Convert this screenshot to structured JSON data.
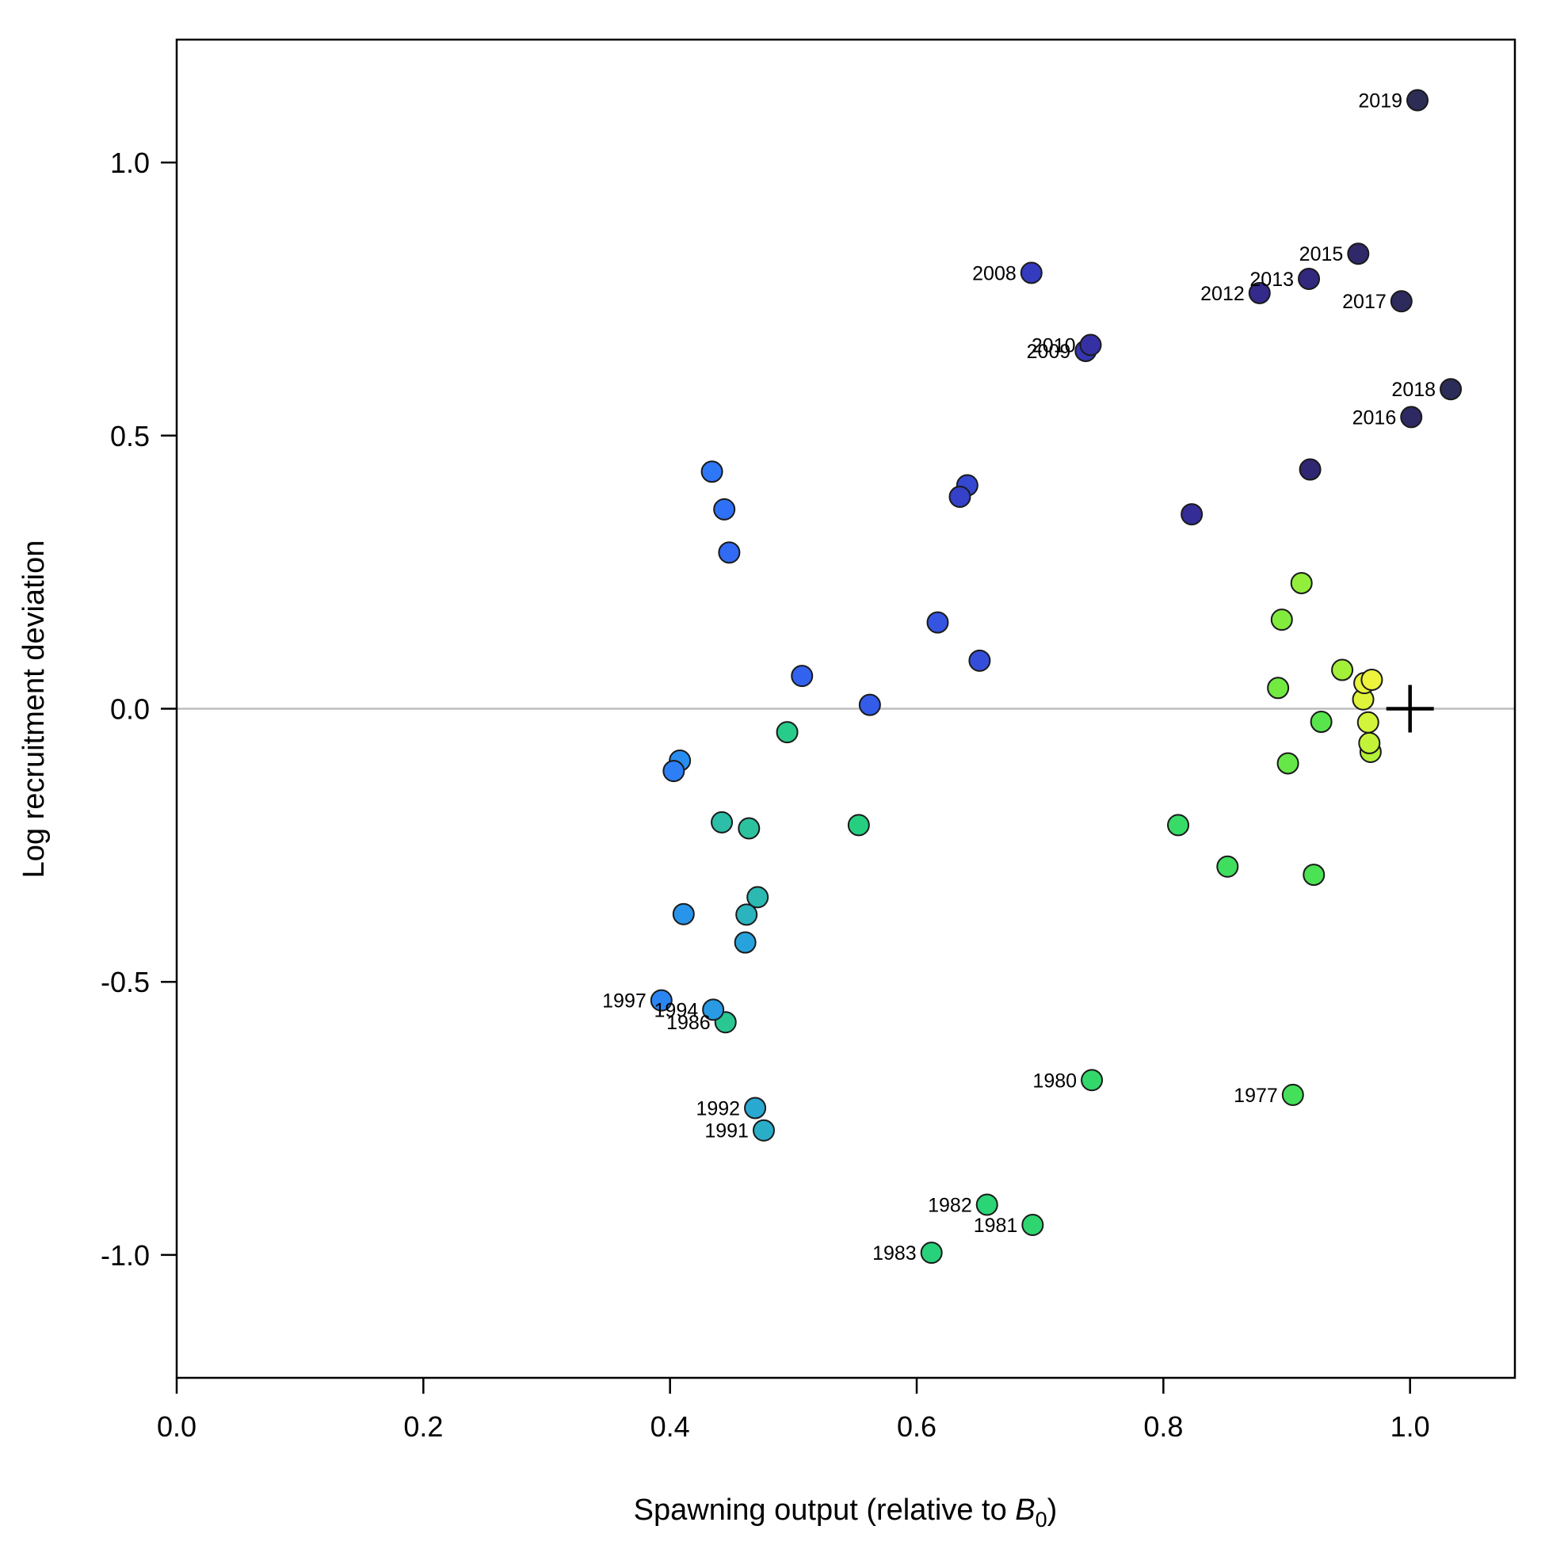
{
  "chart_data": {
    "type": "scatter",
    "xlabel_main": "Spawning output (relative to ",
    "xlabel_symbol": "B",
    "xlabel_sub": "0",
    "xlabel_close": ")",
    "ylabel": "Log recruitment deviation",
    "xlim": [
      0.0,
      1.085
    ],
    "ylim": [
      -1.225,
      1.225
    ],
    "xticks": [
      "0.0",
      "0.2",
      "0.4",
      "0.6",
      "0.8",
      "1.0"
    ],
    "xtick_values": [
      0.0,
      0.2,
      0.4,
      0.6,
      0.8,
      1.0
    ],
    "yticks": [
      "-1.0",
      "-0.5",
      "0.0",
      "0.5",
      "1.0"
    ],
    "ytick_values": [
      -1.0,
      -0.5,
      0.0,
      0.5,
      1.0
    ],
    "reference_line_y": 0.0,
    "reference_line_color": "#bebebe",
    "marker": {
      "x": 1.0,
      "y": 0.0,
      "symbol": "+"
    },
    "points": [
      {
        "x": 0.905,
        "y": -0.707,
        "label": "1977",
        "color": "#44e05a"
      },
      {
        "x": 0.922,
        "y": -0.304,
        "label": "",
        "color": "#4be253"
      },
      {
        "x": 0.852,
        "y": -0.289,
        "label": "",
        "color": "#3fde5f"
      },
      {
        "x": 0.812,
        "y": -0.213,
        "label": "",
        "color": "#38db66"
      },
      {
        "x": 0.742,
        "y": -0.68,
        "label": "1980",
        "color": "#33d86b"
      },
      {
        "x": 0.694,
        "y": -0.945,
        "label": "1981",
        "color": "#2fd670"
      },
      {
        "x": 0.657,
        "y": -0.908,
        "label": "1982",
        "color": "#2bd475"
      },
      {
        "x": 0.612,
        "y": -0.996,
        "label": "1983",
        "color": "#28d27a"
      },
      {
        "x": 0.553,
        "y": -0.213,
        "label": "",
        "color": "#26cf80"
      },
      {
        "x": 0.495,
        "y": -0.043,
        "label": "",
        "color": "#28cc8a"
      },
      {
        "x": 0.445,
        "y": -0.574,
        "label": "1986",
        "color": "#2ac793"
      },
      {
        "x": 0.464,
        "y": -0.219,
        "label": "",
        "color": "#2cc29d"
      },
      {
        "x": 0.442,
        "y": -0.208,
        "label": "",
        "color": "#2cbea7"
      },
      {
        "x": 0.471,
        "y": -0.345,
        "label": "",
        "color": "#2cb9b2"
      },
      {
        "x": 0.462,
        "y": -0.377,
        "label": "",
        "color": "#2bb4bd"
      },
      {
        "x": 0.476,
        "y": -0.772,
        "label": "1991",
        "color": "#2aaec8"
      },
      {
        "x": 0.469,
        "y": -0.731,
        "label": "1992",
        "color": "#29a8d2"
      },
      {
        "x": 0.461,
        "y": -0.428,
        "label": "",
        "color": "#28a2dc"
      },
      {
        "x": 0.435,
        "y": -0.551,
        "label": "1994",
        "color": "#289be4"
      },
      {
        "x": 0.411,
        "y": -0.376,
        "label": "",
        "color": "#2894ea"
      },
      {
        "x": 0.408,
        "y": -0.095,
        "label": "",
        "color": "#298def"
      },
      {
        "x": 0.393,
        "y": -0.534,
        "label": "1997",
        "color": "#2b86f3"
      },
      {
        "x": 0.403,
        "y": -0.114,
        "label": "",
        "color": "#2c7ff6"
      },
      {
        "x": 0.434,
        "y": 0.434,
        "label": "",
        "color": "#2e78f7"
      },
      {
        "x": 0.444,
        "y": 0.365,
        "label": "",
        "color": "#2f71f6"
      },
      {
        "x": 0.448,
        "y": 0.286,
        "label": "",
        "color": "#316af3"
      },
      {
        "x": 0.507,
        "y": 0.06,
        "label": "",
        "color": "#3263ef"
      },
      {
        "x": 0.562,
        "y": 0.007,
        "label": "",
        "color": "#335ce9"
      },
      {
        "x": 0.617,
        "y": 0.158,
        "label": "",
        "color": "#3455e2"
      },
      {
        "x": 0.651,
        "y": 0.088,
        "label": "",
        "color": "#354eda"
      },
      {
        "x": 0.641,
        "y": 0.409,
        "label": "",
        "color": "#3548d2"
      },
      {
        "x": 0.635,
        "y": 0.388,
        "label": "",
        "color": "#3541c9"
      },
      {
        "x": 0.693,
        "y": 0.798,
        "label": "2008",
        "color": "#353bbe"
      },
      {
        "x": 0.737,
        "y": 0.655,
        "label": "2009",
        "color": "#3536b1"
      },
      {
        "x": 0.741,
        "y": 0.666,
        "label": "2010",
        "color": "#3531a4"
      },
      {
        "x": 0.823,
        "y": 0.356,
        "label": "",
        "color": "#342d97"
      },
      {
        "x": 0.878,
        "y": 0.761,
        "label": "2012",
        "color": "#332a8b"
      },
      {
        "x": 0.918,
        "y": 0.787,
        "label": "2013",
        "color": "#32287e"
      },
      {
        "x": 0.919,
        "y": 0.438,
        "label": "",
        "color": "#302773"
      },
      {
        "x": 0.958,
        "y": 0.833,
        "label": "2015",
        "color": "#2f2869"
      },
      {
        "x": 1.001,
        "y": 0.534,
        "label": "2016",
        "color": "#2e2962"
      },
      {
        "x": 0.993,
        "y": 0.746,
        "label": "2017",
        "color": "#2d2b5d"
      },
      {
        "x": 1.033,
        "y": 0.585,
        "label": "2018",
        "color": "#2c2c58"
      },
      {
        "x": 1.006,
        "y": 1.114,
        "label": "2019",
        "color": "#2b2d54"
      },
      {
        "x": 0.928,
        "y": -0.024,
        "label": "",
        "color": "#58e54c"
      },
      {
        "x": 0.901,
        "y": -0.1,
        "label": "",
        "color": "#65e847"
      },
      {
        "x": 0.893,
        "y": 0.038,
        "label": "",
        "color": "#73ea42"
      },
      {
        "x": 0.896,
        "y": 0.163,
        "label": "",
        "color": "#82ec3e"
      },
      {
        "x": 0.912,
        "y": 0.23,
        "label": "",
        "color": "#92ee3b"
      },
      {
        "x": 0.945,
        "y": 0.071,
        "label": "",
        "color": "#a3f039"
      },
      {
        "x": 0.968,
        "y": -0.079,
        "label": "",
        "color": "#b3f238"
      },
      {
        "x": 0.967,
        "y": -0.063,
        "label": "",
        "color": "#c3f338"
      },
      {
        "x": 0.966,
        "y": -0.025,
        "label": "",
        "color": "#d2f439"
      },
      {
        "x": 0.962,
        "y": 0.017,
        "label": "",
        "color": "#def43a"
      },
      {
        "x": 0.963,
        "y": 0.047,
        "label": "",
        "color": "#e8f43b"
      },
      {
        "x": 0.969,
        "y": 0.053,
        "label": "",
        "color": "#eef43c"
      }
    ]
  }
}
